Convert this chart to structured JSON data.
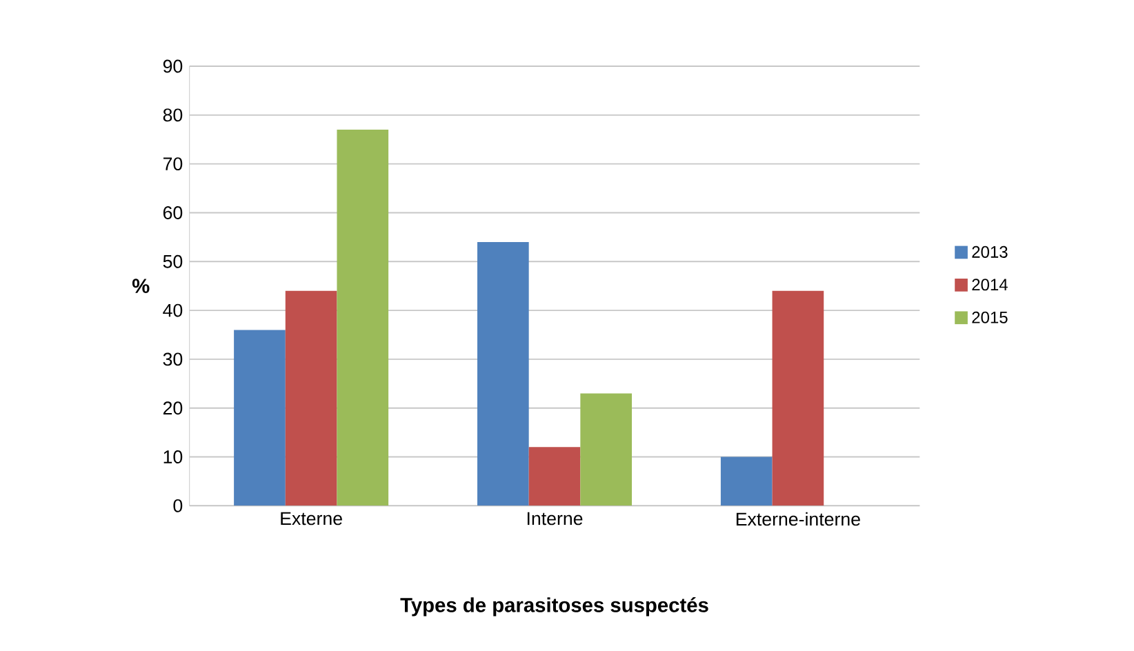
{
  "chart_data": {
    "type": "bar",
    "xlabel": "Types de parasitoses suspectés",
    "ylabel": "%",
    "categories": [
      "Externe",
      "Interne",
      "Externe-interne"
    ],
    "series": [
      {
        "name": "2013",
        "color": "#4f81bd",
        "values": [
          36,
          54,
          10
        ]
      },
      {
        "name": "2014",
        "color": "#c0504d",
        "values": [
          44,
          12,
          44
        ]
      },
      {
        "name": "2015",
        "color": "#9bbb59",
        "values": [
          77,
          23,
          null
        ]
      }
    ],
    "ylim": [
      0,
      90
    ],
    "yticks": [
      0,
      10,
      20,
      30,
      40,
      50,
      60,
      70,
      80,
      90
    ],
    "grid": "y",
    "legend": "right"
  }
}
